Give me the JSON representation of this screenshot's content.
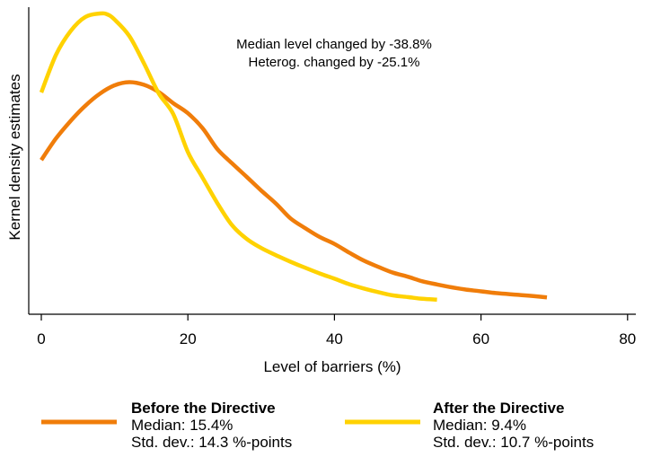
{
  "chart_data": {
    "type": "line",
    "title": "",
    "xlabel": "Level of barriers (%)",
    "ylabel": "Kernel density estimates",
    "xlim": [
      -2,
      81
    ],
    "x_ticks": [
      0,
      20,
      40,
      60,
      80
    ],
    "x_tick_labels": [
      "0",
      "20",
      "40",
      "60",
      "80"
    ],
    "ylim": [
      0,
      1
    ],
    "y_ticks_shown": false,
    "grid": false,
    "annotations": [
      "Median level changed by -38.8%",
      "Heterog. changed by -25.1%"
    ],
    "legend_position": "bottom",
    "series": [
      {
        "name": "Before the Directive",
        "color": "#f07d0a",
        "x": [
          0,
          2,
          4,
          6,
          8,
          10,
          12,
          14,
          16,
          18,
          20,
          22,
          24,
          26,
          28,
          30,
          32,
          34,
          36,
          38,
          40,
          42,
          44,
          46,
          48,
          50,
          52,
          54,
          56,
          58,
          60,
          62,
          64,
          66,
          69
        ],
        "y": [
          0.493,
          0.568,
          0.629,
          0.682,
          0.724,
          0.753,
          0.764,
          0.755,
          0.73,
          0.691,
          0.656,
          0.604,
          0.532,
          0.482,
          0.435,
          0.387,
          0.342,
          0.29,
          0.256,
          0.225,
          0.201,
          0.171,
          0.143,
          0.121,
          0.101,
          0.087,
          0.071,
          0.06,
          0.05,
          0.042,
          0.036,
          0.03,
          0.026,
          0.022,
          0.015
        ]
      },
      {
        "name": "After the Directive",
        "color": "#ffd200",
        "x": [
          0,
          2,
          4,
          6,
          8,
          9,
          10,
          12,
          14,
          16,
          18,
          20,
          22,
          24,
          26,
          28,
          30,
          32,
          34,
          36,
          38,
          40,
          42,
          44,
          46,
          48,
          50,
          52,
          54
        ],
        "y": [
          0.728,
          0.859,
          0.942,
          0.991,
          1.003,
          1.0,
          0.982,
          0.925,
          0.83,
          0.726,
          0.653,
          0.521,
          0.432,
          0.344,
          0.267,
          0.219,
          0.187,
          0.162,
          0.139,
          0.118,
          0.098,
          0.08,
          0.061,
          0.046,
          0.033,
          0.022,
          0.016,
          0.01,
          0.007
        ]
      }
    ]
  },
  "legend": {
    "before": {
      "title": "Before the Directive",
      "median": "Median: 15.4%",
      "std": "Std. dev.: 14.3 %-points"
    },
    "after": {
      "title": "After the Directive",
      "median": "Median: 9.4%",
      "std": "Std. dev.: 10.7 %-points"
    }
  }
}
